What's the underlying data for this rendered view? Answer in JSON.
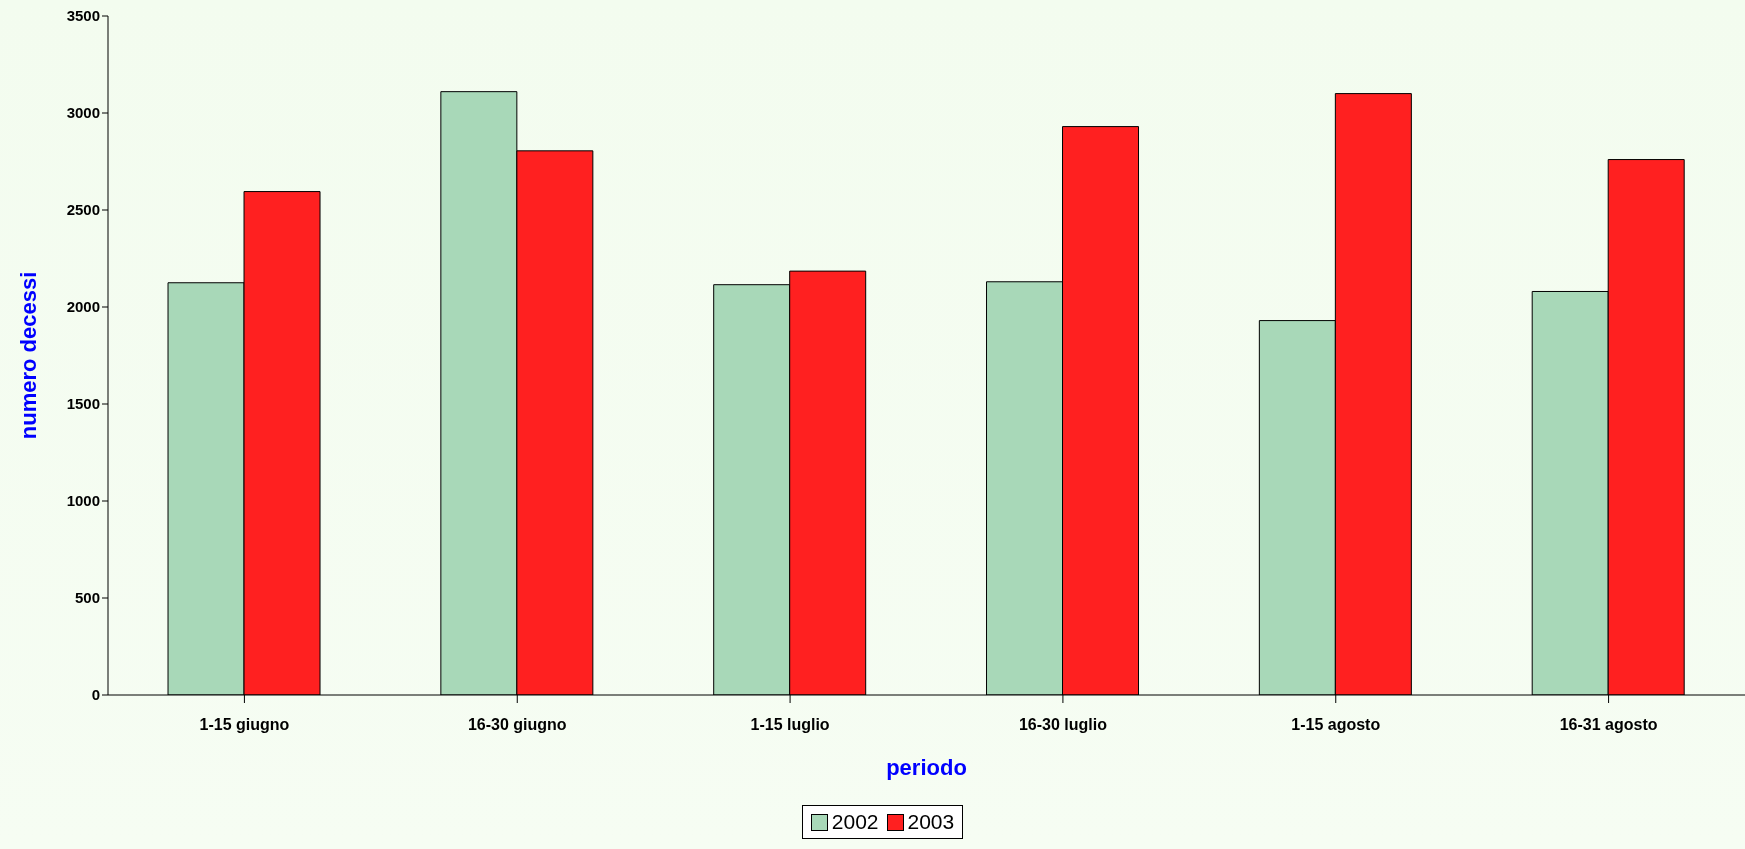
{
  "chart_data": {
    "type": "bar",
    "xlabel": "periodo",
    "ylabel": "numero decessi",
    "categories": [
      "1-15 giugno",
      "16-30 giugno",
      "1-15 luglio",
      "16-30 luglio",
      "1-15 agosto",
      "16-31 agosto"
    ],
    "series": [
      {
        "name": "2002",
        "color": "#a8d8b8",
        "values": [
          2125,
          3110,
          2115,
          2130,
          1930,
          2080
        ]
      },
      {
        "name": "2003",
        "color": "#ff2020",
        "values": [
          2595,
          2805,
          2185,
          2930,
          3100,
          2760
        ]
      }
    ],
    "ylim": [
      0,
      3500
    ],
    "yticks": [
      0,
      500,
      1000,
      1500,
      2000,
      2500,
      3000,
      3500
    ],
    "grid": false,
    "legend": "bottom"
  }
}
